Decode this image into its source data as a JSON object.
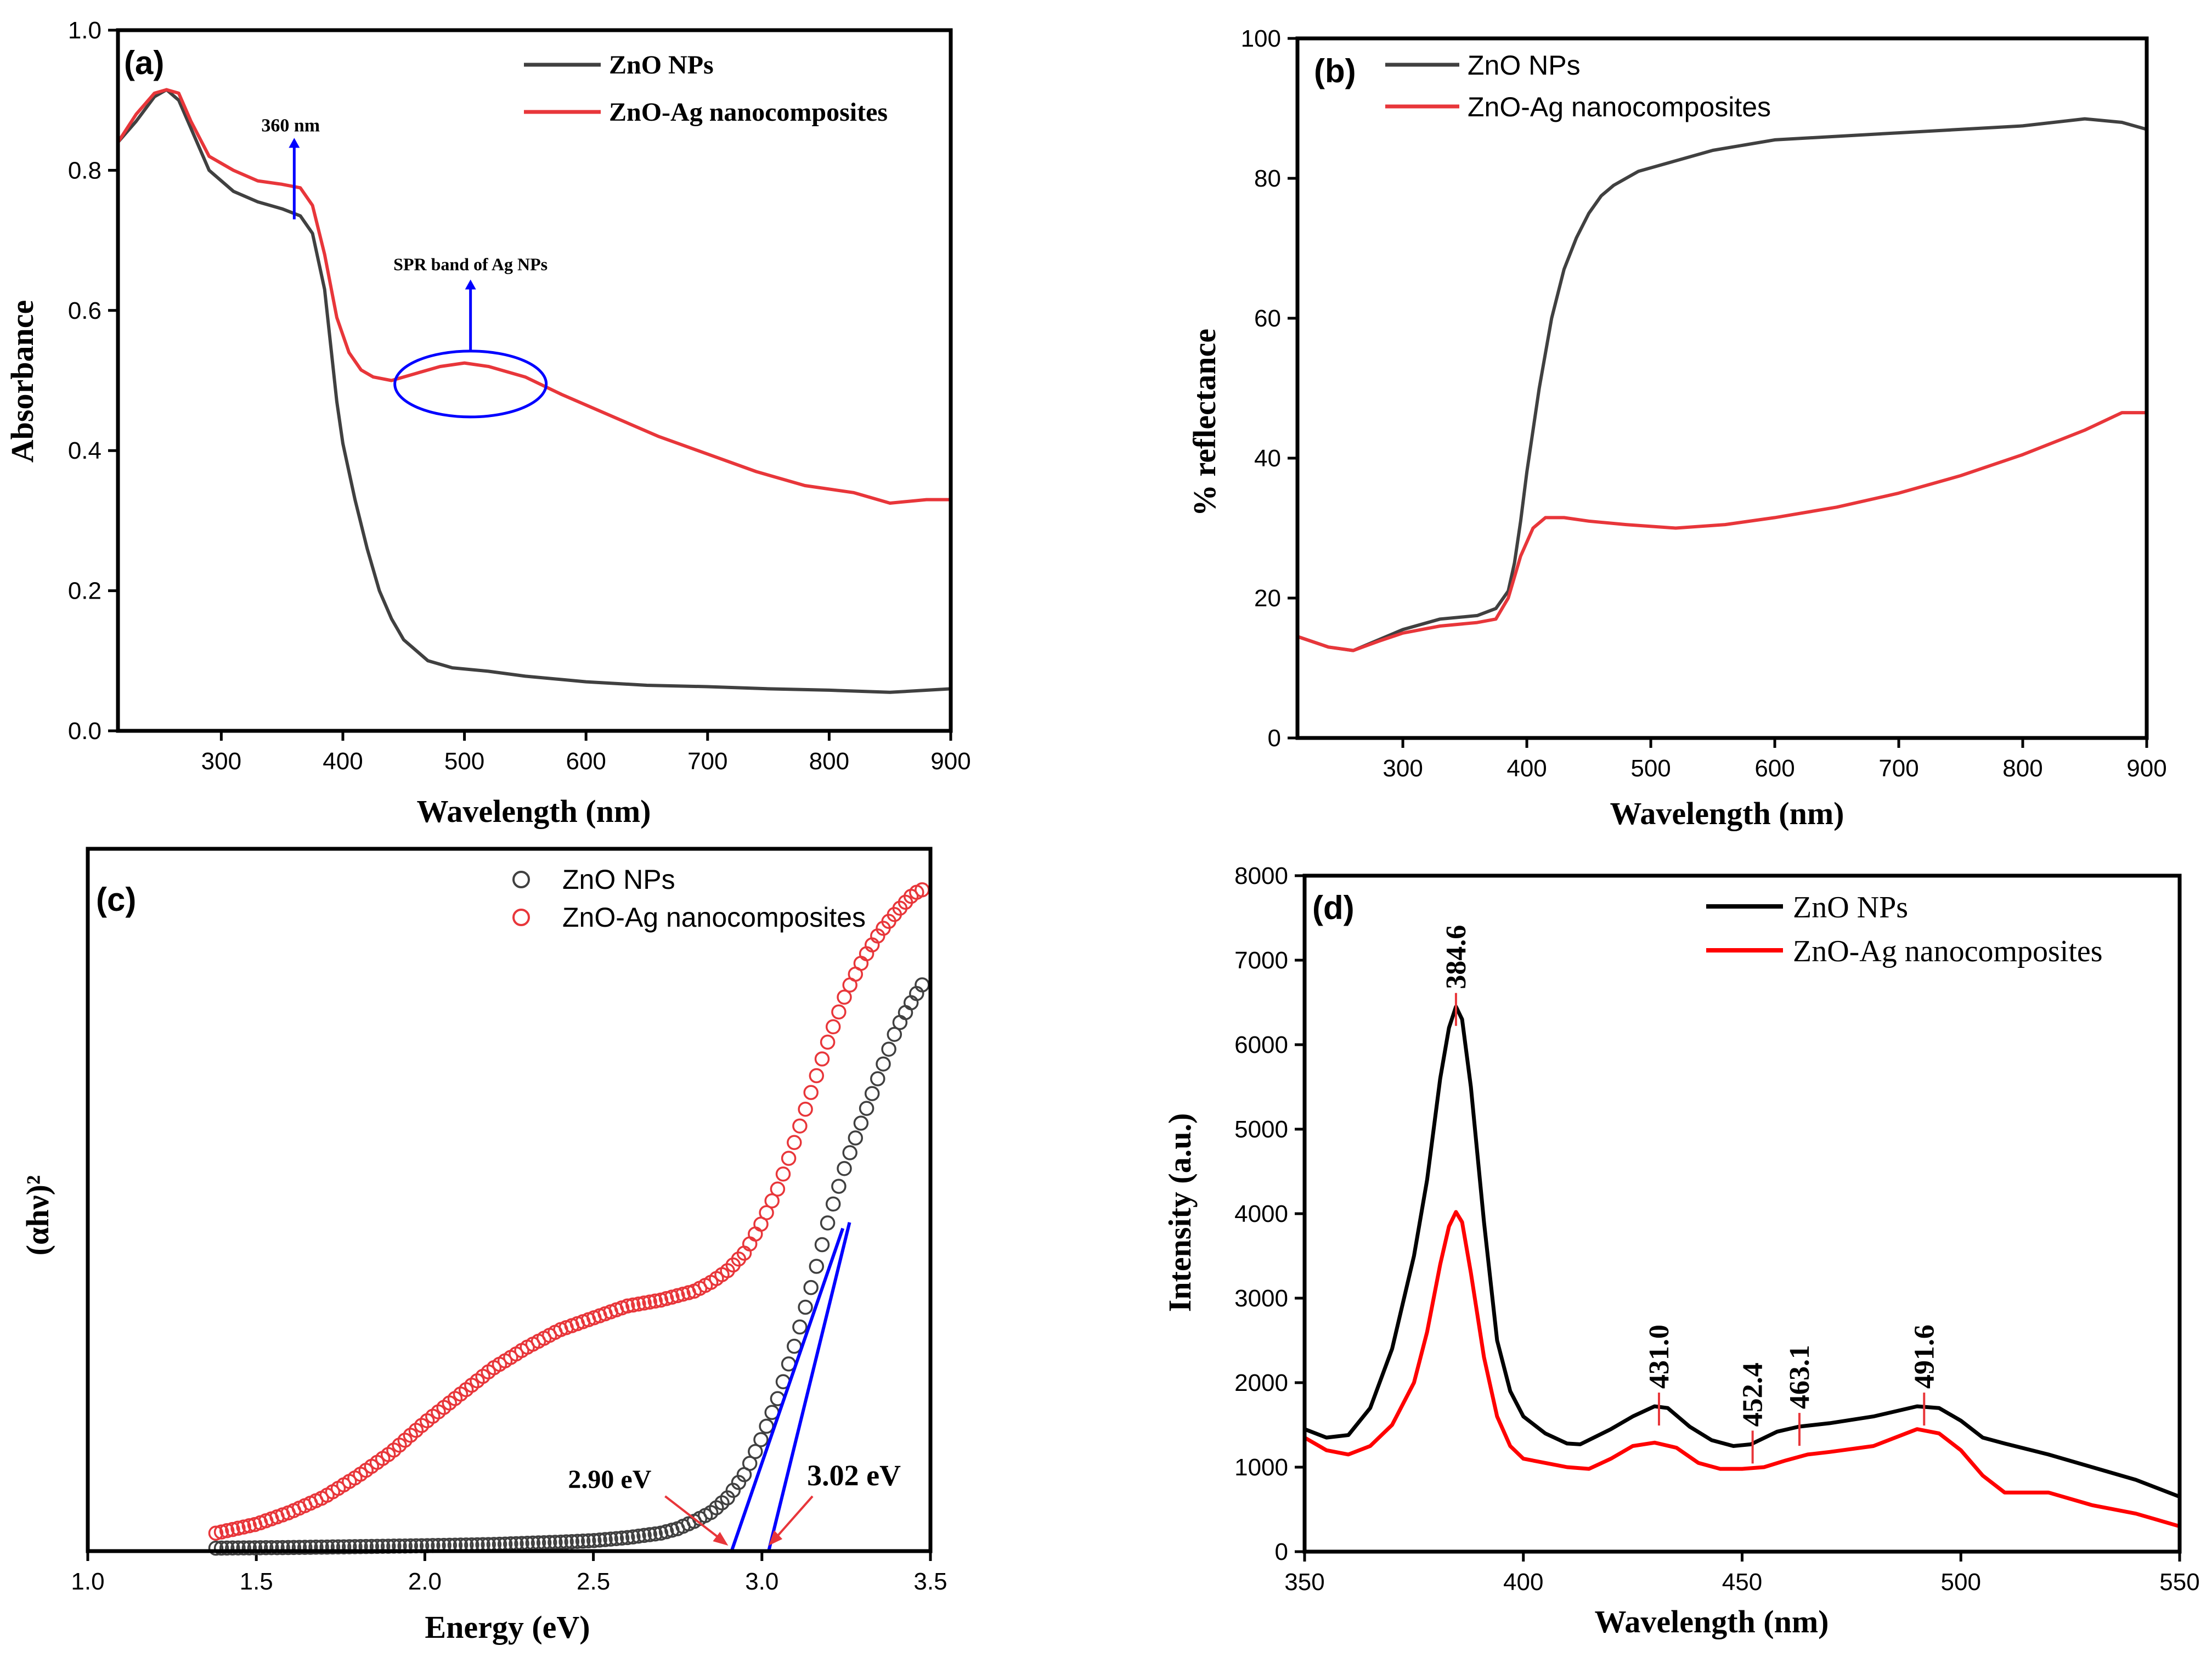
{
  "colors": {
    "zno": "#404040",
    "znoag": "#e8363a",
    "zno_d": "#000000",
    "znoag_d": "#ff0000",
    "annot": "#0000ff",
    "marker": "#e8363a"
  },
  "chart_data": [
    {
      "panel": "(a)",
      "type": "line",
      "xlabel": "Wavelength (nm)",
      "ylabel": "Absorbance",
      "xlim": [
        215,
        900
      ],
      "ylim": [
        0.0,
        1.0
      ],
      "xticks": [
        "300",
        "400",
        "500",
        "600",
        "700",
        "800",
        "900"
      ],
      "yticks": [
        "0.0",
        "0.2",
        "0.4",
        "0.6",
        "0.8",
        "1.0"
      ],
      "legend_position": "top-right",
      "series": [
        {
          "name": "ZnO NPs",
          "x": [
            215,
            230,
            245,
            255,
            265,
            275,
            290,
            310,
            330,
            350,
            365,
            375,
            385,
            390,
            395,
            400,
            410,
            420,
            430,
            440,
            450,
            470,
            490,
            520,
            550,
            600,
            650,
            700,
            750,
            800,
            850,
            900
          ],
          "y": [
            0.84,
            0.87,
            0.905,
            0.915,
            0.9,
            0.86,
            0.8,
            0.77,
            0.755,
            0.745,
            0.735,
            0.71,
            0.63,
            0.55,
            0.47,
            0.41,
            0.33,
            0.26,
            0.2,
            0.16,
            0.13,
            0.1,
            0.09,
            0.085,
            0.078,
            0.07,
            0.065,
            0.063,
            0.06,
            0.058,
            0.055,
            0.06
          ]
        },
        {
          "name": "ZnO-Ag nanocomposites",
          "x": [
            215,
            230,
            245,
            255,
            265,
            275,
            290,
            310,
            330,
            350,
            365,
            375,
            385,
            395,
            405,
            415,
            425,
            440,
            460,
            480,
            500,
            520,
            550,
            580,
            620,
            660,
            700,
            740,
            780,
            820,
            850,
            880,
            900
          ],
          "y": [
            0.84,
            0.88,
            0.91,
            0.915,
            0.91,
            0.87,
            0.82,
            0.8,
            0.785,
            0.78,
            0.775,
            0.75,
            0.68,
            0.59,
            0.54,
            0.515,
            0.505,
            0.5,
            0.51,
            0.52,
            0.525,
            0.52,
            0.505,
            0.48,
            0.45,
            0.42,
            0.395,
            0.37,
            0.35,
            0.34,
            0.325,
            0.33,
            0.33
          ]
        }
      ],
      "annotations": [
        {
          "text": "360 nm",
          "x": 360,
          "y": 0.84
        },
        {
          "text": "SPR band of Ag NPs",
          "x": 505,
          "y": 0.63
        }
      ]
    },
    {
      "panel": "(b)",
      "type": "line",
      "xlabel": "Wavelength (nm)",
      "ylabel": "% reflectance",
      "xlim": [
        215,
        900
      ],
      "ylim": [
        0,
        100
      ],
      "xticks": [
        "300",
        "400",
        "500",
        "600",
        "700",
        "800",
        "900"
      ],
      "yticks": [
        "0",
        "20",
        "40",
        "60",
        "80",
        "100"
      ],
      "legend_position": "top-left",
      "series": [
        {
          "name": "ZnO NPs",
          "x": [
            215,
            240,
            260,
            280,
            300,
            330,
            360,
            375,
            385,
            390,
            395,
            400,
            410,
            420,
            430,
            440,
            450,
            460,
            470,
            480,
            490,
            500,
            520,
            550,
            600,
            650,
            700,
            750,
            800,
            850,
            880,
            900
          ],
          "y": [
            14.5,
            13,
            12.5,
            14,
            15.5,
            17,
            17.5,
            18.5,
            21,
            25,
            31,
            38,
            50,
            60,
            67,
            71.5,
            75,
            77.5,
            79,
            80,
            81,
            81.5,
            82.5,
            84,
            85.5,
            86,
            86.5,
            87,
            87.5,
            88.5,
            88,
            87
          ]
        },
        {
          "name": "ZnO-Ag nanocomposites",
          "x": [
            215,
            240,
            260,
            280,
            300,
            330,
            360,
            375,
            385,
            395,
            405,
            415,
            430,
            450,
            480,
            520,
            560,
            600,
            650,
            700,
            750,
            800,
            850,
            880,
            900
          ],
          "y": [
            14.5,
            13,
            12.5,
            13.8,
            15,
            16,
            16.5,
            17,
            20,
            26,
            30,
            31.5,
            31.5,
            31,
            30.5,
            30,
            30.5,
            31.5,
            33,
            35,
            37.5,
            40.5,
            44,
            46.5,
            46.5
          ]
        }
      ]
    },
    {
      "panel": "(c)",
      "type": "scatter",
      "xlabel": "Energy (eV)",
      "ylabel": "(αhν)²",
      "xlim": [
        1.0,
        3.5
      ],
      "xticks": [
        "1.0",
        "1.5",
        "2.0",
        "2.5",
        "3.0",
        "3.5"
      ],
      "legend_position": "top-right",
      "series": [
        {
          "name": "ZnO NPs",
          "x": [
            1.38,
            1.6,
            1.8,
            2.0,
            2.2,
            2.4,
            2.5,
            2.6,
            2.7,
            2.75,
            2.8,
            2.85,
            2.9,
            2.95,
            3.0,
            3.05,
            3.1,
            3.15,
            3.2,
            3.25,
            3.3,
            3.35,
            3.4,
            3.45,
            3.49
          ],
          "y": [
            0.01,
            0.012,
            0.015,
            0.018,
            0.022,
            0.03,
            0.035,
            0.045,
            0.06,
            0.075,
            0.1,
            0.13,
            0.18,
            0.26,
            0.38,
            0.52,
            0.7,
            0.9,
            1.12,
            1.3,
            1.45,
            1.6,
            1.75,
            1.85,
            1.92
          ]
        },
        {
          "name": "ZnO-Ag nanocomposites",
          "x": [
            1.38,
            1.5,
            1.6,
            1.7,
            1.8,
            1.9,
            2.0,
            2.1,
            2.2,
            2.3,
            2.4,
            2.5,
            2.6,
            2.7,
            2.8,
            2.85,
            2.9,
            2.95,
            3.0,
            3.05,
            3.1,
            3.15,
            3.2,
            3.25,
            3.3,
            3.35,
            3.4,
            3.45,
            3.49
          ],
          "y": [
            0.06,
            0.09,
            0.13,
            0.18,
            0.25,
            0.33,
            0.43,
            0.52,
            0.61,
            0.68,
            0.74,
            0.78,
            0.82,
            0.84,
            0.87,
            0.9,
            0.94,
            1.0,
            1.1,
            1.22,
            1.38,
            1.55,
            1.72,
            1.87,
            1.98,
            2.07,
            2.14,
            2.2,
            2.22
          ]
        }
      ],
      "fits": [
        {
          "x": [
            2.91,
            3.24
          ],
          "y": [
            0.0,
            1.08
          ]
        },
        {
          "x": [
            3.02,
            3.26
          ],
          "y": [
            0.0,
            1.1
          ]
        }
      ],
      "annotations": [
        {
          "text": "2.90 eV",
          "x": 2.9
        },
        {
          "text": "3.02 eV",
          "x": 3.02
        }
      ]
    },
    {
      "panel": "(d)",
      "type": "line",
      "xlabel": "Wavelength (nm)",
      "ylabel": "Intensity (a.u.)",
      "xlim": [
        350,
        550
      ],
      "ylim": [
        0,
        8000
      ],
      "xticks": [
        "350",
        "400",
        "450",
        "500",
        "550"
      ],
      "yticks": [
        "0",
        "1000",
        "2000",
        "3000",
        "4000",
        "5000",
        "6000",
        "7000",
        "8000"
      ],
      "legend_position": "top-right",
      "series": [
        {
          "name": "ZnO NPs",
          "x": [
            350,
            355,
            360,
            365,
            370,
            375,
            378,
            381,
            383,
            384.6,
            386,
            388,
            391,
            394,
            397,
            400,
            405,
            410,
            413,
            420,
            425,
            430,
            433,
            438,
            443,
            448,
            452,
            458,
            463,
            470,
            480,
            490,
            495,
            500,
            505,
            510,
            520,
            530,
            540,
            550
          ],
          "y": [
            1450,
            1350,
            1380,
            1700,
            2400,
            3500,
            4400,
            5600,
            6200,
            6450,
            6300,
            5500,
            3900,
            2500,
            1900,
            1600,
            1400,
            1280,
            1270,
            1450,
            1600,
            1720,
            1700,
            1480,
            1320,
            1250,
            1270,
            1420,
            1480,
            1520,
            1600,
            1720,
            1700,
            1550,
            1350,
            1280,
            1150,
            1000,
            850,
            650
          ]
        },
        {
          "name": "ZnO-Ag nanocomposites",
          "x": [
            350,
            355,
            360,
            365,
            370,
            375,
            378,
            381,
            383,
            384.6,
            386,
            388,
            391,
            394,
            397,
            400,
            405,
            410,
            415,
            420,
            425,
            430,
            435,
            440,
            445,
            450,
            455,
            460,
            465,
            470,
            480,
            490,
            495,
            500,
            505,
            510,
            520,
            530,
            540,
            550
          ],
          "y": [
            1350,
            1200,
            1150,
            1250,
            1500,
            2000,
            2600,
            3400,
            3850,
            4020,
            3900,
            3300,
            2300,
            1600,
            1250,
            1100,
            1050,
            1000,
            980,
            1100,
            1250,
            1290,
            1230,
            1050,
            980,
            980,
            1000,
            1080,
            1150,
            1180,
            1250,
            1450,
            1400,
            1200,
            900,
            700,
            700,
            550,
            450,
            300
          ]
        }
      ],
      "peak_labels": [
        {
          "text": "384.6",
          "x": 384.6,
          "y": 6450
        },
        {
          "text": "431.0",
          "x": 431.0,
          "y": 1720
        },
        {
          "text": "452.4",
          "x": 452.4,
          "y": 1270
        },
        {
          "text": "463.1",
          "x": 463.1,
          "y": 1480
        },
        {
          "text": "491.6",
          "x": 491.6,
          "y": 1720
        }
      ]
    }
  ]
}
